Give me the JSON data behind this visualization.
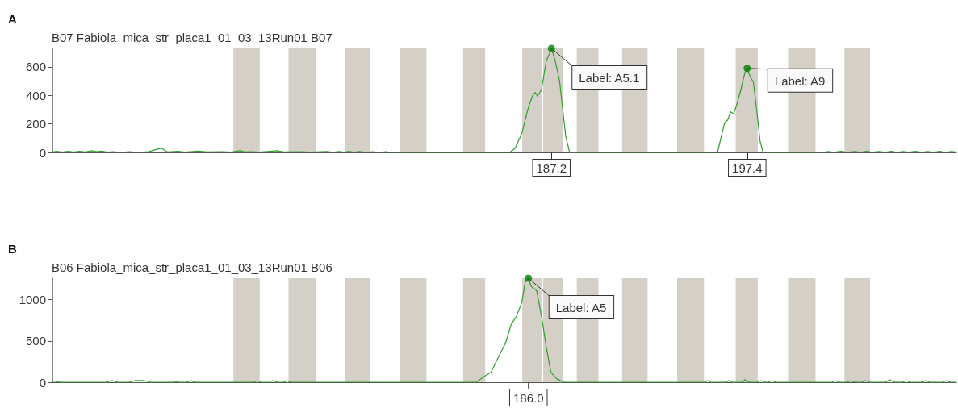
{
  "chart_data": [
    {
      "type": "line",
      "title": "A",
      "subtitle": "B07 Fabiola_mica_str_placa1_01_03_13Run01 B07",
      "xlim": [
        161.2,
        208.3
      ],
      "ylim": [
        0,
        730
      ],
      "yticks": [
        0,
        200,
        400,
        600
      ],
      "xticks": [
        {
          "value": 187.2,
          "label": "187.2"
        },
        {
          "value": 197.4,
          "label": "197.4"
        }
      ],
      "marker": "none",
      "series": [
        {
          "color": "#2f9e2f",
          "x": [
            161.2,
            161.41,
            161.7,
            162.04,
            162.3,
            162.59,
            162.9,
            163.22,
            163.5,
            163.76,
            164.05,
            164.39,
            164.7,
            165.23,
            165.6,
            166.2,
            166.87,
            167.2,
            167.75,
            168.1,
            168.8,
            169.3,
            170.06,
            170.5,
            170.98,
            171.25,
            171.53,
            172.0,
            172.91,
            173.3,
            174.13,
            174.6,
            175.52,
            175.8,
            176.15,
            176.4,
            176.65,
            176.9,
            177.2,
            177.5,
            177.91,
            178.2,
            178.58,
            178.8,
            185.03,
            185.31,
            185.66,
            186.01,
            186.22,
            186.36,
            186.47,
            186.68,
            186.92,
            187.2,
            187.41,
            187.62,
            187.76,
            187.94,
            188.15,
            195.85,
            196.02,
            196.23,
            196.37,
            196.55,
            196.69,
            196.86,
            197.07,
            197.28,
            197.4,
            197.56,
            197.72,
            197.91,
            198.07,
            198.23,
            201.4,
            201.63,
            201.9,
            202.3,
            202.6,
            203.01,
            203.3,
            203.64,
            203.9,
            204.27,
            204.6,
            204.9,
            205.2,
            205.53,
            205.8,
            206.16,
            206.5,
            206.79,
            207.1,
            207.42,
            207.7,
            208.05,
            208.3
          ],
          "values": [
            3,
            8,
            2,
            8,
            2,
            8,
            3,
            12,
            5,
            10,
            2,
            5,
            0,
            5,
            0,
            5,
            30,
            3,
            8,
            2,
            10,
            3,
            5,
            2,
            12,
            3,
            5,
            2,
            12,
            3,
            5,
            2,
            6,
            1,
            6,
            1,
            8,
            1,
            6,
            1,
            5,
            0,
            5,
            0,
            0,
            30,
            135,
            320,
            400,
            420,
            395,
            440,
            635,
            730,
            635,
            505,
            335,
            115,
            0,
            0,
            95,
            210,
            225,
            285,
            270,
            335,
            440,
            560,
            590,
            530,
            495,
            280,
            80,
            0,
            0,
            6,
            1,
            8,
            1,
            6,
            1,
            8,
            1,
            6,
            1,
            8,
            1,
            6,
            1,
            8,
            1,
            6,
            1,
            8,
            1,
            6,
            2
          ]
        },
        {
          "type": "scatter",
          "marker": "circle",
          "color": "#007f00",
          "x": [
            187.2,
            197.4
          ],
          "values": [
            730,
            590
          ]
        }
      ],
      "annotations": [
        {
          "text": "Label: A5.1",
          "x": 187.2,
          "y": 730
        },
        {
          "text": "Label: A9",
          "x": 197.4,
          "y": 590
        }
      ],
      "bands": [
        {
          "axis": "x",
          "from": 170.63,
          "to": 172.0,
          "color": "#d4d0c8"
        },
        {
          "axis": "x",
          "from": 173.5,
          "to": 174.93,
          "color": "#d4d0c8"
        },
        {
          "axis": "x",
          "from": 176.43,
          "to": 177.75,
          "color": "#d4d0c8"
        },
        {
          "axis": "x",
          "from": 179.31,
          "to": 180.69,
          "color": "#d4d0c8"
        },
        {
          "axis": "x",
          "from": 182.6,
          "to": 183.75,
          "color": "#d4d0c8"
        },
        {
          "axis": "x",
          "from": 185.68,
          "to": 186.68,
          "color": "#d4d0c8"
        },
        {
          "axis": "x",
          "from": 186.77,
          "to": 187.8,
          "color": "#d4d0c8"
        },
        {
          "axis": "x",
          "from": 188.52,
          "to": 189.65,
          "color": "#d4d0c8"
        },
        {
          "axis": "x",
          "from": 190.88,
          "to": 192.21,
          "color": "#d4d0c8"
        },
        {
          "axis": "x",
          "from": 193.75,
          "to": 195.15,
          "color": "#d4d0c8"
        },
        {
          "axis": "x",
          "from": 196.8,
          "to": 197.95,
          "color": "#d4d0c8"
        },
        {
          "axis": "x",
          "from": 199.53,
          "to": 200.96,
          "color": "#d4d0c8"
        },
        {
          "axis": "x",
          "from": 202.47,
          "to": 203.8,
          "color": "#d4d0c8"
        }
      ]
    },
    {
      "type": "line",
      "title": "B",
      "subtitle": "B06 Fabiola_mica_str_placa1_01_03_13Run01 B06",
      "xlim": [
        161.2,
        208.3
      ],
      "ylim": [
        0,
        1260
      ],
      "yticks": [
        0,
        500,
        1000
      ],
      "tick_labels": "y",
      "marker": "none",
      "series": [
        {
          "color": "#2f9e2f",
          "x": [
            161.2,
            161.35,
            161.6,
            164.0,
            164.31,
            164.6,
            165.2,
            165.48,
            166.0,
            166.3,
            167.5,
            167.62,
            167.8,
            168.2,
            168.42,
            168.6,
            171.7,
            171.86,
            172.1,
            172.5,
            172.66,
            172.9,
            173.25,
            173.41,
            173.6,
            183.28,
            183.7,
            184.05,
            184.47,
            184.82,
            185.1,
            185.38,
            185.66,
            185.83,
            186.0,
            186.15,
            186.43,
            186.71,
            186.92,
            187.17,
            187.48,
            187.86,
            195.2,
            195.32,
            195.5,
            196.3,
            196.44,
            196.6,
            197.1,
            197.28,
            197.5,
            197.9,
            198.1,
            198.3,
            198.5,
            198.68,
            198.9,
            201.8,
            201.97,
            202.2,
            202.6,
            202.8,
            203.0,
            203.4,
            203.56,
            203.8,
            204.6,
            204.82,
            205.1,
            205.5,
            205.66,
            205.9,
            206.5,
            206.71,
            206.9,
            207.6,
            207.76,
            208.0,
            208.3
          ],
          "values": [
            10,
            10,
            0,
            0,
            20,
            0,
            0,
            20,
            20,
            0,
            0,
            10,
            0,
            0,
            20,
            0,
            0,
            20,
            0,
            0,
            20,
            0,
            0,
            20,
            0,
            0,
            70,
            120,
            320,
            480,
            700,
            800,
            970,
            1210,
            1260,
            1160,
            1110,
            760,
            440,
            120,
            40,
            0,
            0,
            20,
            0,
            0,
            20,
            0,
            0,
            30,
            0,
            0,
            20,
            0,
            0,
            20,
            0,
            0,
            20,
            0,
            0,
            20,
            0,
            0,
            20,
            0,
            0,
            30,
            0,
            0,
            20,
            0,
            0,
            20,
            0,
            0,
            20,
            0,
            0
          ]
        },
        {
          "type": "scatter",
          "marker": "circle",
          "color": "#007f00",
          "x": [
            186.0
          ],
          "values": [
            1260
          ]
        }
      ],
      "annotations": [
        {
          "text": "Label: A5",
          "x": 186.0,
          "y": 1260
        },
        {
          "text": "186.0",
          "x": 186.0,
          "y": 0
        }
      ],
      "bands": [
        {
          "axis": "x",
          "from": 170.63,
          "to": 172.0,
          "color": "#d4d0c8"
        },
        {
          "axis": "x",
          "from": 173.5,
          "to": 174.93,
          "color": "#d4d0c8"
        },
        {
          "axis": "x",
          "from": 176.43,
          "to": 177.75,
          "color": "#d4d0c8"
        },
        {
          "axis": "x",
          "from": 179.31,
          "to": 180.69,
          "color": "#d4d0c8"
        },
        {
          "axis": "x",
          "from": 182.6,
          "to": 183.75,
          "color": "#d4d0c8"
        },
        {
          "axis": "x",
          "from": 185.68,
          "to": 186.68,
          "color": "#d4d0c8"
        },
        {
          "axis": "x",
          "from": 186.77,
          "to": 187.8,
          "color": "#d4d0c8"
        },
        {
          "axis": "x",
          "from": 188.52,
          "to": 189.65,
          "color": "#d4d0c8"
        },
        {
          "axis": "x",
          "from": 190.88,
          "to": 192.21,
          "color": "#d4d0c8"
        },
        {
          "axis": "x",
          "from": 193.75,
          "to": 195.15,
          "color": "#d4d0c8"
        },
        {
          "axis": "x",
          "from": 196.8,
          "to": 197.95,
          "color": "#d4d0c8"
        },
        {
          "axis": "x",
          "from": 199.53,
          "to": 200.96,
          "color": "#d4d0c8"
        },
        {
          "axis": "x",
          "from": 202.47,
          "to": 203.8,
          "color": "#d4d0c8"
        }
      ]
    }
  ]
}
